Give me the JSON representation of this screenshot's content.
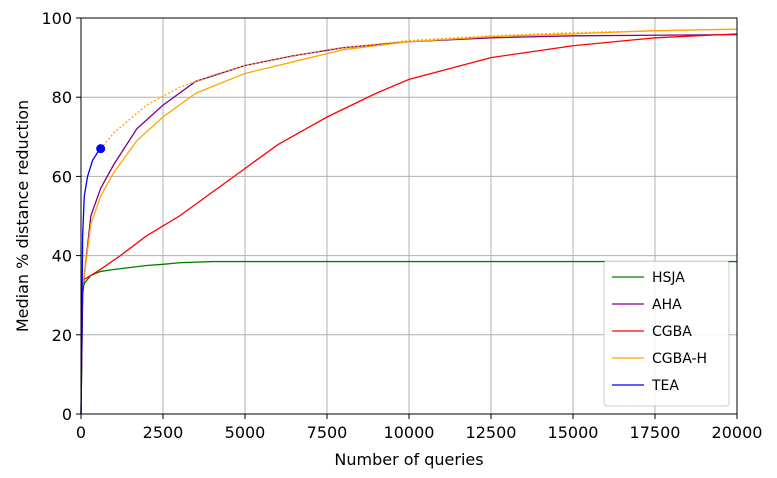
{
  "chart_data": {
    "type": "line",
    "xlabel": "Number of queries",
    "ylabel": "Median % distance reduction",
    "xlim": [
      0,
      20000
    ],
    "ylim": [
      0,
      100
    ],
    "xticks": [
      0,
      2500,
      5000,
      7500,
      10000,
      12500,
      15000,
      17500,
      20000
    ],
    "yticks": [
      0,
      20,
      40,
      60,
      80,
      100
    ],
    "grid": true,
    "legend": "lower right",
    "series": [
      {
        "name": "HSJA",
        "color": "#008000",
        "x": [
          0,
          50,
          100,
          300,
          600,
          1000,
          1500,
          2000,
          2500,
          3000,
          4000,
          6000,
          10000,
          15000,
          20000
        ],
        "values": [
          0,
          31,
          33,
          35,
          36,
          36.5,
          37,
          37.5,
          37.8,
          38.2,
          38.5,
          38.5,
          38.5,
          38.5,
          38.5
        ]
      },
      {
        "name": "AHA",
        "color": "#800080",
        "x": [
          0,
          50,
          100,
          300,
          600,
          1000,
          1700,
          2500,
          3500,
          5000,
          6500,
          8000,
          10000,
          12500,
          15000,
          20000
        ],
        "values": [
          0,
          30,
          35,
          50,
          57,
          63,
          72,
          78,
          84,
          88,
          90.5,
          92.5,
          94,
          95,
          95.5,
          95.8
        ]
      },
      {
        "name": "CGBA",
        "color": "#ff0000",
        "x": [
          0,
          100,
          500,
          1200,
          2000,
          3000,
          4000,
          5000,
          6000,
          7500,
          9000,
          10000,
          12500,
          15000,
          17500,
          20000
        ],
        "values": [
          33,
          34,
          36,
          40,
          45,
          50,
          56,
          62,
          68,
          75,
          81,
          84.5,
          90,
          93,
          95,
          96
        ]
      },
      {
        "name": "CGBA-H",
        "color": "#ffa500",
        "x": [
          0,
          100,
          300,
          600,
          1000,
          1700,
          2500,
          3500,
          5000,
          6500,
          8000,
          10000,
          12500,
          15000,
          17500,
          20000
        ],
        "values": [
          30,
          35,
          48,
          55,
          61,
          69,
          75,
          81,
          86,
          89,
          92,
          94,
          95.3,
          96,
          96.8,
          97.2
        ]
      },
      {
        "color": "#ffa500",
        "linestyle": "dotted",
        "x": [
          600,
          1000,
          2000,
          3000,
          4000,
          5000,
          7500,
          10000,
          12500,
          15000,
          20000
        ],
        "values": [
          67,
          71,
          78,
          82.5,
          85.5,
          88,
          92,
          94.3,
          95.5,
          96.3,
          97.2
        ]
      },
      {
        "name": "TEA",
        "color": "#0000ff",
        "marker_end": true,
        "x": [
          0,
          50,
          100,
          200,
          350,
          500,
          600
        ],
        "values": [
          0,
          45,
          55,
          60,
          64,
          66,
          67
        ]
      }
    ]
  }
}
